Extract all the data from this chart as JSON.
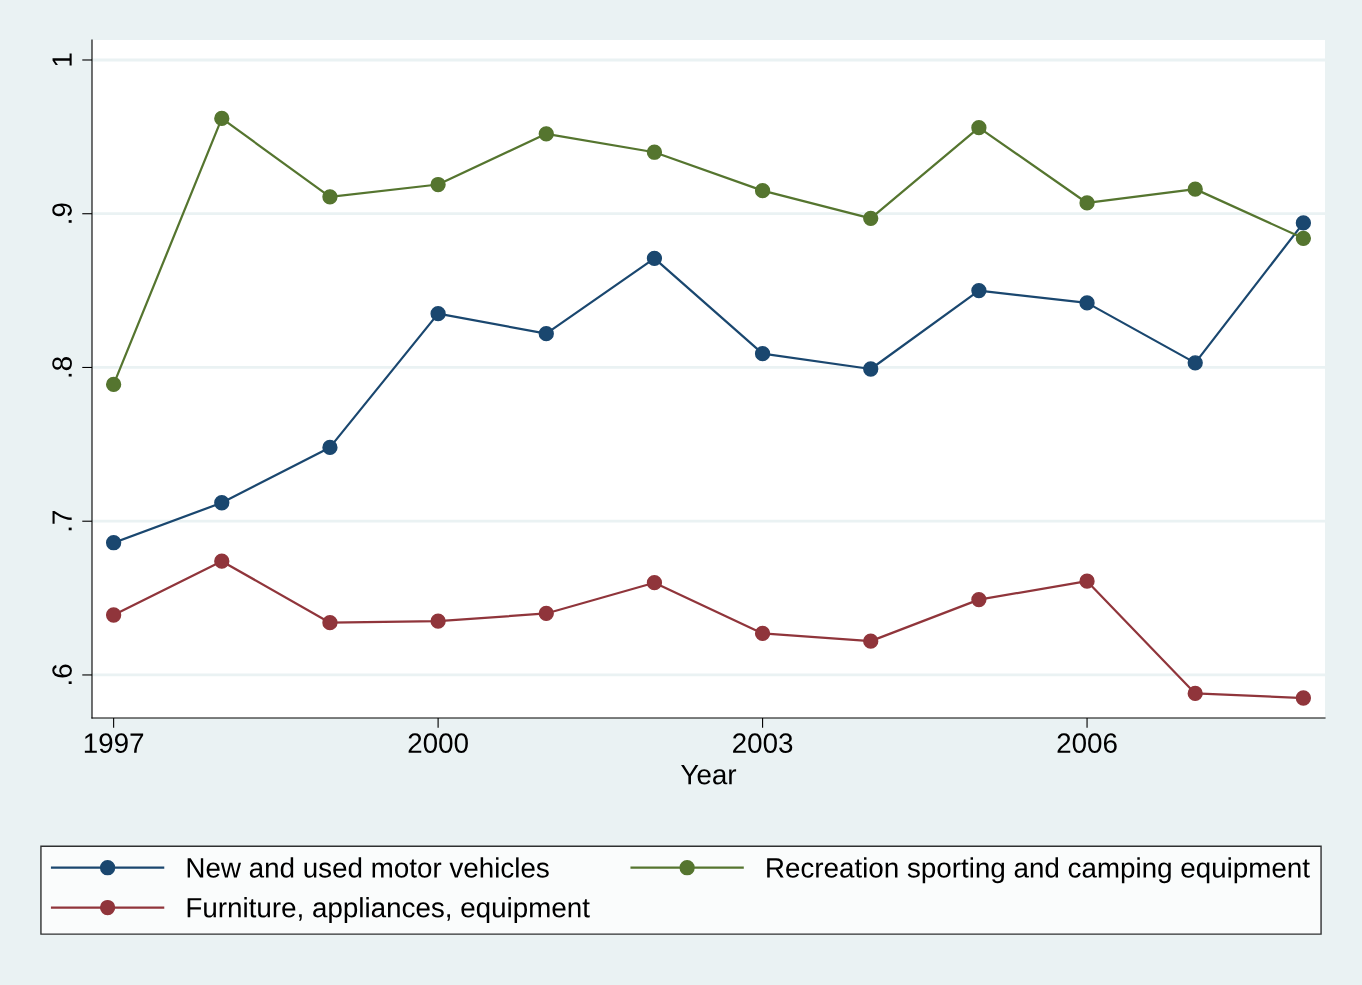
{
  "chart_data": {
    "type": "line",
    "xlabel": "Year",
    "x": [
      1997,
      1998,
      1999,
      2000,
      2001,
      2002,
      2003,
      2004,
      2005,
      2006,
      2007,
      2008
    ],
    "series": [
      {
        "name": "New and used motor vehicles",
        "color": "#1a476f",
        "values": [
          0.686,
          0.712,
          0.748,
          0.835,
          0.822,
          0.871,
          0.809,
          0.799,
          0.85,
          0.842,
          0.803,
          0.894
        ]
      },
      {
        "name": "Furniture, appliances, equipment",
        "color": "#90353b",
        "values": [
          0.639,
          0.674,
          0.634,
          0.635,
          0.64,
          0.66,
          0.627,
          0.622,
          0.649,
          0.661,
          0.588,
          0.585
        ]
      },
      {
        "name": "Recreation sporting and camping equipment",
        "color": "#55752f",
        "values": [
          0.789,
          0.962,
          0.911,
          0.919,
          0.952,
          0.94,
          0.915,
          0.897,
          0.956,
          0.907,
          0.916,
          0.884
        ]
      }
    ],
    "xlim": [
      1996.8,
      2008.2
    ],
    "xticks": [
      1997,
      2000,
      2003,
      2006
    ],
    "ylim": [
      0.572,
      1.013
    ],
    "yticks": [
      {
        "value": 0.6,
        "label": ".6"
      },
      {
        "value": 0.7,
        "label": ".7"
      },
      {
        "value": 0.8,
        "label": ".8"
      },
      {
        "value": 0.9,
        "label": ".9"
      },
      {
        "value": 1,
        "label": "1"
      }
    ],
    "grid": "y",
    "legend": "bottom",
    "marker": "circle",
    "line_style": "solid"
  }
}
